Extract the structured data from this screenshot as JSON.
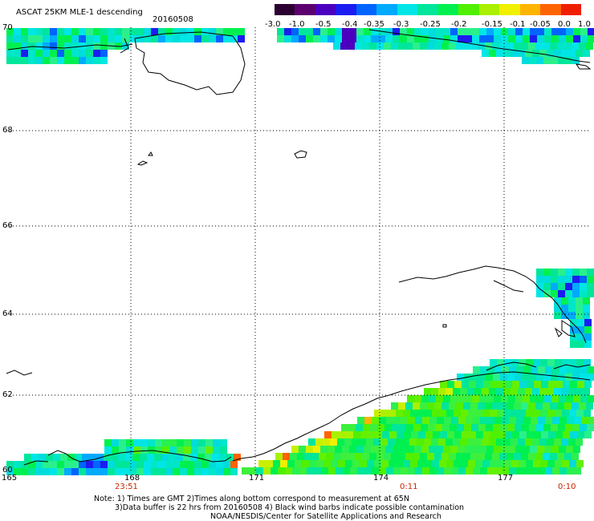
{
  "header": {
    "title": "ASCAT 25KM MLE-1 descending",
    "date": "20160508"
  },
  "colorbar": {
    "labels": [
      "-3.0",
      "-1.0",
      "-0.5",
      "-0.4",
      "-0.35",
      "-0.3",
      "-0.25",
      "-0.2",
      "-0.15",
      "-0.1",
      "-0.05",
      "0.0",
      "1.0"
    ],
    "colors": [
      "#2a0030",
      "#5c0070",
      "#4b00c0",
      "#1c1cf0",
      "#0064ff",
      "#00aaff",
      "#00e6e6",
      "#00e69a",
      "#00f050",
      "#50f000",
      "#aaf000",
      "#f0f000",
      "#ffb400",
      "#ff6400",
      "#f01e00"
    ]
  },
  "map": {
    "lat_labels": [
      "70",
      "68",
      "66",
      "64",
      "62",
      "60"
    ],
    "lon_labels": [
      "165",
      "168",
      "171",
      "174",
      "177"
    ],
    "time_labels": [
      "23:51",
      "0:11",
      "0:10"
    ],
    "lat_range": [
      60,
      70
    ],
    "lon_range": [
      165,
      178.5
    ]
  },
  "notes": {
    "line1": "Note: 1) Times are GMT 2)Times along bottom correspond to measurement at 65N",
    "line2": "3)Data buffer is 22 hrs from 20160508 4) Black wind barbs indicate possible contamination",
    "line3": "NOAA/NESDIS/Center for Satellite Applications and Research"
  }
}
